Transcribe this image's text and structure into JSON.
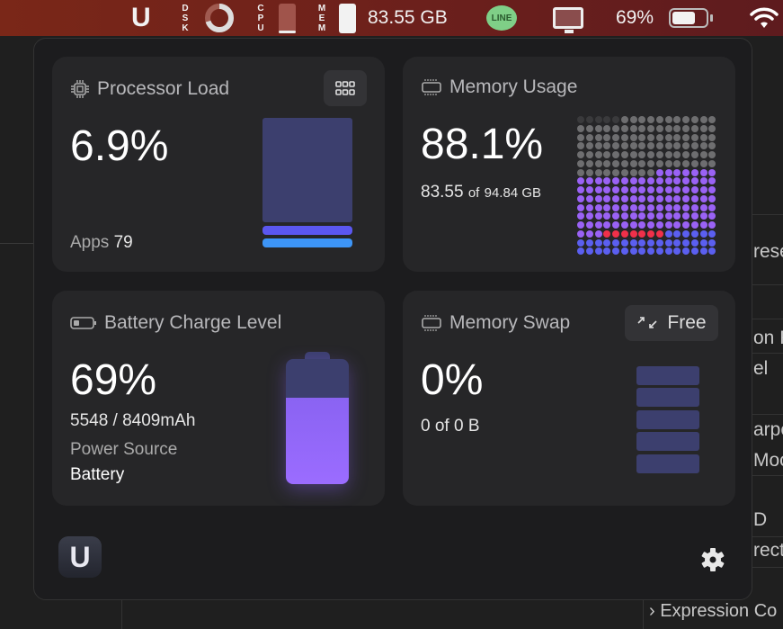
{
  "menubar": {
    "app_icon": "U",
    "dsk_label": [
      "D",
      "S",
      "K"
    ],
    "cpu_label": [
      "C",
      "P",
      "U"
    ],
    "mem_label": [
      "M",
      "E",
      "M"
    ],
    "memory_text": "83.55 GB",
    "line_icon": "LINE",
    "battery_text": "69%",
    "battery_level": 69,
    "dsk_ring_fraction": 0.7
  },
  "background_app": {
    "fragments": [
      "rese",
      "on F",
      "el",
      "arpe",
      "Mocl",
      "D",
      "rect",
      "Expression Co"
    ]
  },
  "processor": {
    "title": "Processor Load",
    "value": "6.9%",
    "apps_label": "Apps",
    "apps_count": "79",
    "colors": {
      "idle": "#3c3f6e",
      "user": "#5b57f0",
      "system": "#3d95f7"
    }
  },
  "memory": {
    "title": "Memory Usage",
    "value": "88.1%",
    "used": "83.55",
    "of": "of",
    "total": "94.84 GB",
    "grid": [
      {
        "count": 5,
        "color": "#3a3a3c"
      },
      {
        "count": 100,
        "color": "#6e6e70"
      },
      {
        "count": 106,
        "color": "#9a62f5"
      },
      {
        "count": 7,
        "color": "#f0304a"
      },
      {
        "count": 38,
        "color": "#5b5ff0"
      }
    ]
  },
  "battery": {
    "title": "Battery Charge Level",
    "value": "69%",
    "level": 69,
    "capacity": "5548 / 8409mAh",
    "source_label": "Power Source",
    "source_value": "Battery"
  },
  "swap": {
    "title": "Memory Swap",
    "value": "0%",
    "detail": "0 of 0 B",
    "free_button": "Free"
  },
  "footer": {
    "logo": "U"
  }
}
